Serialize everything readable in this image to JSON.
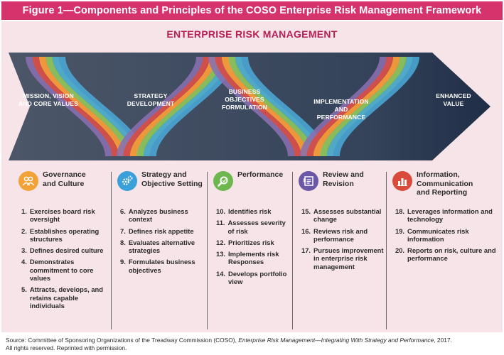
{
  "header": {
    "title": "Figure 1—Components and Principles of the COSO Enterprise Risk Management Framework"
  },
  "erm_title": "ENTERPRISE RISK MANAGEMENT",
  "colors": {
    "header_bg": "#d6336c",
    "panel_bg": "#f7e4e8",
    "erm_title": "#b51f55",
    "band": "#3c4a5c",
    "band_end": "#1f2d46",
    "ribbon_blue": "#4aa7d6",
    "ribbon_green": "#7cc060",
    "ribbon_orange": "#f3a23b",
    "ribbon_red": "#d94b3f",
    "ribbon_purple": "#8a6fb0"
  },
  "stages": [
    {
      "line1": "MISSION, VISION",
      "line2": "AND CORE VALUES",
      "line3": ""
    },
    {
      "line1": "STRATEGY",
      "line2": "DEVELOPMENT",
      "line3": ""
    },
    {
      "line1": "BUSINESS",
      "line2": "OBJECTIVES",
      "line3": "FORMULATION"
    },
    {
      "line1": "IMPLEMENTATION",
      "line2": "AND",
      "line3": "PERFORMANCE"
    },
    {
      "line1": "ENHANCED",
      "line2": "VALUE",
      "line3": ""
    }
  ],
  "components": [
    {
      "title_line1": "Governance",
      "title_line2": "and Culture",
      "title_line3": "",
      "icon": "people-icon",
      "icon_color": "#f1a33a",
      "items": [
        {
          "num": "1.",
          "text": "Exercises board risk oversight"
        },
        {
          "num": "2.",
          "text": "Establishes operating structures"
        },
        {
          "num": "3.",
          "text": "Defines desired culture"
        },
        {
          "num": "4.",
          "text": "Demonstrates commitment to core values"
        },
        {
          "num": "5.",
          "text": "Attracts, develops, and retains capable individuals"
        }
      ]
    },
    {
      "title_line1": "Strategy and",
      "title_line2": "Objective Setting",
      "title_line3": "",
      "icon": "gears-icon",
      "icon_color": "#3aa0d9",
      "items": [
        {
          "num": "6.",
          "text": "Analyzes business context"
        },
        {
          "num": "7.",
          "text": "Defines risk appetite"
        },
        {
          "num": "8.",
          "text": "Evaluates alternative strategies"
        },
        {
          "num": "9.",
          "text": "Formulates business objectives"
        }
      ]
    },
    {
      "title_line1": "Performance",
      "title_line2": "",
      "title_line3": "",
      "icon": "magnifier-icon",
      "icon_color": "#6db84e",
      "items": [
        {
          "num": "10.",
          "text": "Identifies risk"
        },
        {
          "num": "11.",
          "text": "Assesses severity of risk"
        },
        {
          "num": "12.",
          "text": "Prioritizes risk"
        },
        {
          "num": "13.",
          "text": "Implements risk Responses"
        },
        {
          "num": "14.",
          "text": "Develops portfolio view"
        }
      ]
    },
    {
      "title_line1": "Review and",
      "title_line2": "Revision",
      "title_line3": "",
      "icon": "document-icon",
      "icon_color": "#6a57a6",
      "items": [
        {
          "num": "15.",
          "text": "Assesses substantial change"
        },
        {
          "num": "16.",
          "text": "Reviews risk and performance"
        },
        {
          "num": "17.",
          "text": "Pursues improvement in enterprise risk management"
        }
      ]
    },
    {
      "title_line1": "Information,",
      "title_line2": "Communication",
      "title_line3": "and Reporting",
      "icon": "bar-chart-icon",
      "icon_color": "#d94a3a",
      "items": [
        {
          "num": "18.",
          "text": "Leverages information and technology"
        },
        {
          "num": "19.",
          "text": "Communicates risk information"
        },
        {
          "num": "20.",
          "text": "Reports on risk, culture and performance"
        }
      ]
    }
  ],
  "source": {
    "prefix": "Source: Committee of Sponsoring Organizations of the Treadway Commission (COSO), ",
    "title": "Enterprise Risk Management—Integrating With Strategy and Performance",
    "suffix": ", 2017.",
    "line2": "All rights reserved. Reprinted with permission."
  }
}
